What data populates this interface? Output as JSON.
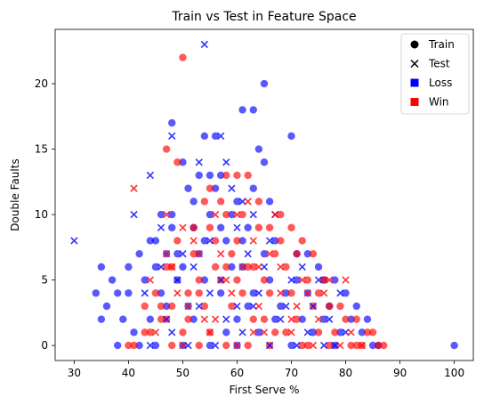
{
  "chart_data": {
    "type": "scatter",
    "title": "Train vs Test in Feature Space",
    "xlabel": "First Serve %",
    "ylabel": "Double Faults",
    "xlim": [
      26.5,
      103.5
    ],
    "ylim": [
      -1.15,
      24.15
    ],
    "xticks": [
      30,
      40,
      50,
      60,
      70,
      80,
      90,
      100
    ],
    "yticks": [
      0,
      5,
      10,
      15,
      20
    ],
    "grid": false,
    "legend_position": "top-right",
    "legend": [
      {
        "label": "Train",
        "marker": "circle",
        "color": "#000000"
      },
      {
        "label": "Test",
        "marker": "x",
        "color": "#000000"
      },
      {
        "label": "Loss",
        "marker": "square",
        "color": "#0000ff"
      },
      {
        "label": "Win",
        "marker": "square",
        "color": "#ff0000"
      }
    ],
    "colors": {
      "Loss": "#0000ff",
      "Win": "#ff0000"
    },
    "series": [
      {
        "split": "Train",
        "outcome": "Loss",
        "marker": "circle",
        "points": [
          [
            65,
            20
          ],
          [
            48,
            17
          ],
          [
            61,
            18
          ],
          [
            63,
            18
          ],
          [
            70,
            16
          ],
          [
            54,
            16
          ],
          [
            56,
            16
          ],
          [
            64,
            15
          ],
          [
            65,
            14
          ],
          [
            50,
            14
          ],
          [
            53,
            13
          ],
          [
            55,
            13
          ],
          [
            57,
            13
          ],
          [
            51,
            12
          ],
          [
            52,
            11
          ],
          [
            56,
            12
          ],
          [
            60,
            11
          ],
          [
            63,
            12
          ],
          [
            59,
            10
          ],
          [
            66,
            11
          ],
          [
            46,
            10
          ],
          [
            48,
            9
          ],
          [
            44,
            8
          ],
          [
            45,
            8
          ],
          [
            47,
            7
          ],
          [
            49,
            7
          ],
          [
            52,
            9
          ],
          [
            54,
            8
          ],
          [
            58,
            8
          ],
          [
            62,
            9
          ],
          [
            67,
            8
          ],
          [
            71,
            7
          ],
          [
            73,
            7
          ],
          [
            75,
            6
          ],
          [
            76,
            5
          ],
          [
            78,
            5
          ],
          [
            80,
            4
          ],
          [
            82,
            3
          ],
          [
            84,
            2
          ],
          [
            100,
            0
          ],
          [
            35,
            6
          ],
          [
            37,
            5
          ],
          [
            34,
            4
          ],
          [
            36,
            3
          ],
          [
            38,
            4
          ],
          [
            40,
            4
          ],
          [
            39,
            2
          ],
          [
            35,
            2
          ],
          [
            41,
            1
          ],
          [
            42,
            0
          ],
          [
            45,
            0
          ],
          [
            50,
            0
          ],
          [
            55,
            0
          ],
          [
            60,
            0
          ],
          [
            70,
            0
          ],
          [
            78,
            0
          ],
          [
            86,
            0
          ],
          [
            43,
            5
          ],
          [
            47,
            3
          ],
          [
            52,
            2
          ],
          [
            58,
            1
          ],
          [
            63,
            4
          ],
          [
            68,
            3
          ],
          [
            72,
            2
          ],
          [
            74,
            1
          ],
          [
            79,
            1
          ],
          [
            81,
            2
          ],
          [
            44,
            2
          ],
          [
            40,
            6
          ],
          [
            42,
            7
          ],
          [
            45,
            6
          ],
          [
            55,
            10
          ],
          [
            61,
            6
          ],
          [
            66,
            5
          ],
          [
            69,
            4
          ],
          [
            77,
            3
          ],
          [
            83,
            1
          ],
          [
            85,
            0
          ],
          [
            49,
            5
          ],
          [
            51,
            3
          ],
          [
            57,
            4
          ],
          [
            60,
            2
          ],
          [
            64,
            1
          ],
          [
            48,
            10
          ],
          [
            53,
            7
          ],
          [
            59,
            6
          ],
          [
            62,
            3
          ],
          [
            67,
            2
          ],
          [
            73,
            4
          ],
          [
            76,
            2
          ],
          [
            46,
            4
          ],
          [
            50,
            6
          ],
          [
            54,
            5
          ],
          [
            65,
            7
          ],
          [
            71,
            5
          ],
          [
            57,
            9
          ],
          [
            61,
            8
          ],
          [
            38,
            0
          ]
        ]
      },
      {
        "split": "Train",
        "outcome": "Win",
        "marker": "circle",
        "points": [
          [
            50,
            22
          ],
          [
            47,
            15
          ],
          [
            49,
            14
          ],
          [
            58,
            13
          ],
          [
            60,
            13
          ],
          [
            62,
            13
          ],
          [
            55,
            12
          ],
          [
            57,
            11
          ],
          [
            64,
            11
          ],
          [
            68,
            10
          ],
          [
            61,
            10
          ],
          [
            66,
            9
          ],
          [
            72,
            8
          ],
          [
            74,
            7
          ],
          [
            70,
            9
          ],
          [
            67,
            7
          ],
          [
            63,
            6
          ],
          [
            59,
            7
          ],
          [
            56,
            6
          ],
          [
            53,
            5
          ],
          [
            51,
            4
          ],
          [
            48,
            3
          ],
          [
            46,
            2
          ],
          [
            44,
            1
          ],
          [
            41,
            0
          ],
          [
            48,
            0
          ],
          [
            53,
            0
          ],
          [
            58,
            0
          ],
          [
            62,
            0
          ],
          [
            66,
            0
          ],
          [
            72,
            0
          ],
          [
            77,
            0
          ],
          [
            82,
            0
          ],
          [
            87,
            0
          ],
          [
            45,
            4
          ],
          [
            47,
            6
          ],
          [
            49,
            8
          ],
          [
            52,
            9
          ],
          [
            54,
            11
          ],
          [
            58,
            10
          ],
          [
            60,
            8
          ],
          [
            65,
            5
          ],
          [
            69,
            6
          ],
          [
            73,
            5
          ],
          [
            75,
            4
          ],
          [
            77,
            3
          ],
          [
            80,
            2
          ],
          [
            84,
            1
          ],
          [
            86,
            0
          ],
          [
            43,
            1
          ],
          [
            46,
            3
          ],
          [
            51,
            2
          ],
          [
            55,
            1
          ],
          [
            59,
            3
          ],
          [
            63,
            2
          ],
          [
            67,
            1
          ],
          [
            71,
            2
          ],
          [
            74,
            3
          ],
          [
            78,
            1
          ],
          [
            81,
            0
          ],
          [
            40,
            0
          ],
          [
            43,
            3
          ],
          [
            48,
            6
          ],
          [
            52,
            7
          ],
          [
            56,
            8
          ],
          [
            61,
            4
          ],
          [
            64,
            9
          ],
          [
            68,
            8
          ],
          [
            70,
            4
          ],
          [
            76,
            5
          ],
          [
            79,
            3
          ],
          [
            82,
            2
          ],
          [
            85,
            1
          ],
          [
            50,
            1
          ],
          [
            54,
            3
          ],
          [
            57,
            5
          ],
          [
            60,
            5
          ],
          [
            62,
            6
          ],
          [
            65,
            2
          ],
          [
            69,
            1
          ],
          [
            73,
            0
          ],
          [
            75,
            1
          ],
          [
            83,
            0
          ],
          [
            47,
            2
          ],
          [
            53,
            4
          ],
          [
            58,
            6
          ],
          [
            66,
            4
          ],
          [
            71,
            7
          ],
          [
            55,
            9
          ]
        ]
      },
      {
        "split": "Test",
        "outcome": "Loss",
        "marker": "x",
        "points": [
          [
            54,
            23
          ],
          [
            48,
            16
          ],
          [
            57,
            16
          ],
          [
            53,
            14
          ],
          [
            58,
            14
          ],
          [
            44,
            13
          ],
          [
            41,
            10
          ],
          [
            30,
            8
          ],
          [
            46,
            9
          ],
          [
            50,
            7
          ],
          [
            55,
            8
          ],
          [
            60,
            9
          ],
          [
            63,
            10
          ],
          [
            67,
            10
          ],
          [
            52,
            6
          ],
          [
            57,
            5
          ],
          [
            62,
            7
          ],
          [
            65,
            6
          ],
          [
            70,
            5
          ],
          [
            75,
            5
          ],
          [
            79,
            4
          ],
          [
            53,
            3
          ],
          [
            58,
            2
          ],
          [
            63,
            3
          ],
          [
            68,
            2
          ],
          [
            73,
            1
          ],
          [
            77,
            2
          ],
          [
            48,
            1
          ],
          [
            44,
            0
          ],
          [
            51,
            0
          ],
          [
            56,
            0
          ],
          [
            61,
            1
          ],
          [
            66,
            0
          ],
          [
            71,
            0
          ],
          [
            76,
            0
          ],
          [
            80,
            1
          ],
          [
            43,
            4
          ],
          [
            46,
            6
          ],
          [
            49,
            5
          ],
          [
            55,
            4
          ],
          [
            60,
            3
          ],
          [
            64,
            4
          ],
          [
            69,
            3
          ],
          [
            72,
            6
          ],
          [
            74,
            3
          ],
          [
            78,
            0
          ],
          [
            59,
            12
          ],
          [
            61,
            11
          ],
          [
            47,
            2
          ],
          [
            66,
            8
          ]
        ]
      },
      {
        "split": "Test",
        "outcome": "Win",
        "marker": "x",
        "points": [
          [
            41,
            12
          ],
          [
            47,
            10
          ],
          [
            50,
            9
          ],
          [
            56,
            10
          ],
          [
            62,
            11
          ],
          [
            67,
            10
          ],
          [
            80,
            5
          ],
          [
            52,
            8
          ],
          [
            57,
            7
          ],
          [
            63,
            8
          ],
          [
            68,
            6
          ],
          [
            73,
            4
          ],
          [
            77,
            5
          ],
          [
            49,
            4
          ],
          [
            54,
            2
          ],
          [
            59,
            4
          ],
          [
            64,
            3
          ],
          [
            70,
            2
          ],
          [
            75,
            2
          ],
          [
            81,
            1
          ],
          [
            45,
            1
          ],
          [
            50,
            0
          ],
          [
            55,
            1
          ],
          [
            60,
            0
          ],
          [
            65,
            1
          ],
          [
            70,
            1
          ],
          [
            74,
            0
          ],
          [
            79,
            0
          ],
          [
            44,
            5
          ],
          [
            48,
            6
          ],
          [
            53,
            7
          ],
          [
            58,
            5
          ],
          [
            61,
            6
          ],
          [
            66,
            7
          ],
          [
            71,
            3
          ],
          [
            76,
            4
          ],
          [
            83,
            0
          ],
          [
            51,
            3
          ],
          [
            56,
            2
          ],
          [
            63,
            1
          ],
          [
            68,
            4
          ],
          [
            72,
            5
          ],
          [
            47,
            7
          ],
          [
            60,
            10
          ],
          [
            64,
            6
          ]
        ]
      }
    ]
  }
}
